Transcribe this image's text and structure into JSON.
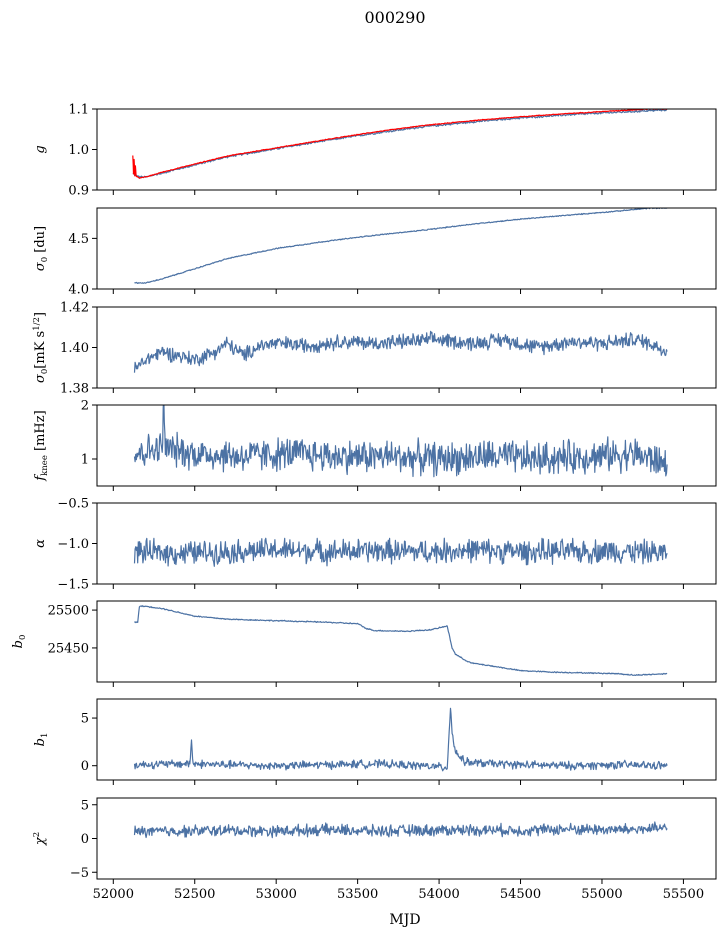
{
  "figure": {
    "title": "000290",
    "xlabel": "MJD"
  },
  "colors": {
    "series": "#4c72a4",
    "fit": "#ff0000"
  },
  "chart_data": [
    {
      "type": "line",
      "ylabel": "g",
      "xlim": [
        51900,
        55700
      ],
      "ylim": [
        0.9,
        1.1
      ],
      "yticks": [
        0.9,
        1.0,
        1.1
      ],
      "ytick_labels": [
        "0.9",
        "1.0",
        "1.1"
      ],
      "xticks": [
        52000,
        52500,
        53000,
        53500,
        54000,
        54500,
        55000,
        55500
      ],
      "series": [
        {
          "color": "#4c72a4",
          "x": [
            52120,
            52160,
            52200,
            52300,
            52500,
            52700,
            53000,
            53300,
            53600,
            53900,
            54200,
            54500,
            54800,
            55100,
            55300,
            55400
          ],
          "y": [
            0.94,
            0.932,
            0.932,
            0.942,
            0.962,
            0.982,
            1.002,
            1.022,
            1.04,
            1.056,
            1.068,
            1.078,
            1.086,
            1.092,
            1.096,
            1.098
          ]
        },
        {
          "color": "#ff0000",
          "x": [
            52120,
            52124,
            52128,
            52132,
            52136,
            52140,
            52160,
            52200,
            52300,
            52500,
            52700,
            53000,
            53300,
            53600,
            53900,
            54200,
            54500,
            54800,
            55100,
            55300,
            55400
          ],
          "y": [
            0.985,
            0.94,
            0.975,
            0.935,
            0.96,
            0.934,
            0.93,
            0.932,
            0.944,
            0.964,
            0.984,
            1.004,
            1.024,
            1.043,
            1.059,
            1.071,
            1.081,
            1.089,
            1.096,
            1.1,
            1.1
          ]
        }
      ]
    },
    {
      "type": "line",
      "ylabel": "σ0 [du]",
      "xlim": [
        51900,
        55700
      ],
      "ylim": [
        4.0,
        4.8
      ],
      "yticks": [
        4.0,
        4.5
      ],
      "ytick_labels": [
        "4.0",
        "4.5"
      ],
      "xticks": [
        52000,
        52500,
        53000,
        53500,
        54000,
        54500,
        55000,
        55500
      ],
      "series": [
        {
          "color": "#4c72a4",
          "x": [
            52130,
            52200,
            52300,
            52500,
            52700,
            53000,
            53300,
            53600,
            53900,
            54200,
            54500,
            54800,
            55100,
            55300,
            55400
          ],
          "y": [
            4.06,
            4.06,
            4.1,
            4.2,
            4.3,
            4.4,
            4.47,
            4.53,
            4.58,
            4.64,
            4.69,
            4.73,
            4.77,
            4.8,
            4.8
          ]
        }
      ]
    },
    {
      "type": "line",
      "ylabel": "σ0[mK s^1/2]",
      "xlim": [
        51900,
        55700
      ],
      "ylim": [
        1.38,
        1.42
      ],
      "yticks": [
        1.38,
        1.4,
        1.42
      ],
      "ytick_labels": [
        "1.38",
        "1.40",
        "1.42"
      ],
      "xticks": [
        52000,
        52500,
        53000,
        53500,
        54000,
        54500,
        55000,
        55500
      ],
      "series": [
        {
          "color": "#4c72a4",
          "x": [
            52130,
            52200,
            52300,
            52400,
            52500,
            52600,
            52700,
            52800,
            52900,
            53000,
            53200,
            53400,
            53600,
            53800,
            54000,
            54200,
            54400,
            54600,
            54800,
            55000,
            55200,
            55300,
            55400
          ],
          "y": [
            1.389,
            1.394,
            1.398,
            1.396,
            1.394,
            1.397,
            1.402,
            1.396,
            1.401,
            1.402,
            1.401,
            1.403,
            1.402,
            1.403,
            1.404,
            1.402,
            1.404,
            1.4,
            1.403,
            1.402,
            1.404,
            1.402,
            1.398
          ]
        }
      ]
    },
    {
      "type": "line",
      "ylabel": "fknee [mHz]",
      "xlim": [
        51900,
        55700
      ],
      "ylim": [
        0.5,
        2.0
      ],
      "yticks": [
        1,
        2
      ],
      "ytick_labels": [
        "1",
        "2"
      ],
      "xticks": [
        52000,
        52500,
        53000,
        53500,
        54000,
        54500,
        55000,
        55500
      ],
      "series": [
        {
          "color": "#4c72a4",
          "x": [
            52130,
            52200,
            52300,
            52310,
            52320,
            52500,
            52800,
            53100,
            53400,
            53700,
            54000,
            54300,
            54600,
            54900,
            55200,
            55400
          ],
          "y": [
            1.1,
            1.15,
            1.2,
            2.0,
            1.2,
            1.1,
            1.05,
            1.1,
            1.05,
            1.05,
            1.0,
            1.05,
            1.0,
            1.05,
            1.1,
            0.9
          ]
        }
      ]
    },
    {
      "type": "line",
      "ylabel": "α",
      "xlim": [
        51900,
        55700
      ],
      "ylim": [
        -1.5,
        -0.5
      ],
      "yticks": [
        -1.5,
        -1.0,
        -0.5
      ],
      "ytick_labels": [
        "−1.5",
        "−1.0",
        "−0.5"
      ],
      "xticks": [
        52000,
        52500,
        53000,
        53500,
        54000,
        54500,
        55000,
        55500
      ],
      "series": [
        {
          "color": "#4c72a4",
          "x": [
            52130,
            52400,
            52700,
            53000,
            53300,
            53600,
            53900,
            54200,
            54500,
            54800,
            55100,
            55400
          ],
          "y": [
            -1.1,
            -1.12,
            -1.1,
            -1.08,
            -1.1,
            -1.09,
            -1.1,
            -1.08,
            -1.1,
            -1.1,
            -1.09,
            -1.12
          ]
        }
      ]
    },
    {
      "type": "line",
      "ylabel": "b0",
      "xlim": [
        51900,
        55700
      ],
      "ylim": [
        25405,
        25512
      ],
      "yticks": [
        25450,
        25500
      ],
      "ytick_labels": [
        "25450",
        "25500"
      ],
      "xticks": [
        52000,
        52500,
        53000,
        53500,
        54000,
        54500,
        55000,
        55500
      ],
      "series": [
        {
          "color": "#4c72a4",
          "x": [
            52130,
            52150,
            52160,
            52200,
            52300,
            52500,
            52700,
            53000,
            53300,
            53500,
            53550,
            53600,
            53800,
            53950,
            54050,
            54080,
            54100,
            54150,
            54200,
            54300,
            54500,
            54700,
            54900,
            55100,
            55200,
            55300,
            55400
          ],
          "y": [
            25484,
            25484,
            25505,
            25505,
            25502,
            25492,
            25488,
            25486,
            25484,
            25482,
            25476,
            25473,
            25472,
            25474,
            25479,
            25450,
            25442,
            25435,
            25430,
            25427,
            25420,
            25418,
            25417,
            25416,
            25414,
            25415,
            25416
          ]
        }
      ]
    },
    {
      "type": "line",
      "ylabel": "b1",
      "xlim": [
        51900,
        55700
      ],
      "ylim": [
        -1.5,
        7
      ],
      "yticks": [
        0,
        5
      ],
      "ytick_labels": [
        "0",
        "5"
      ],
      "xticks": [
        52000,
        52500,
        53000,
        53500,
        54000,
        54500,
        55000,
        55500
      ],
      "series": [
        {
          "color": "#4c72a4",
          "x": [
            52130,
            52400,
            52470,
            52480,
            52490,
            52700,
            53000,
            53300,
            53600,
            53900,
            54050,
            54070,
            54080,
            54100,
            54150,
            54200,
            54500,
            54800,
            55100,
            55400
          ],
          "y": [
            0.1,
            0.2,
            0.2,
            2.6,
            0.2,
            0.1,
            0.0,
            0.1,
            0.2,
            0.0,
            -0.2,
            6.2,
            3.5,
            1.5,
            0.5,
            0.3,
            0.1,
            0.0,
            0.1,
            0.0
          ]
        }
      ]
    },
    {
      "type": "line",
      "ylabel": "χ²",
      "xlim": [
        51900,
        55700
      ],
      "ylim": [
        -6,
        6
      ],
      "yticks": [
        -5,
        0,
        5
      ],
      "ytick_labels": [
        "−5",
        "0",
        "5"
      ],
      "xticks": [
        52000,
        52500,
        53000,
        53500,
        54000,
        54500,
        55000,
        55500
      ],
      "xtick_labels": [
        "52000",
        "52500",
        "53000",
        "53500",
        "54000",
        "54500",
        "55000",
        "55500"
      ],
      "series": [
        {
          "color": "#4c72a4",
          "x": [
            52130,
            52400,
            52700,
            53000,
            53300,
            53600,
            53900,
            54200,
            54500,
            54800,
            55100,
            55400
          ],
          "y": [
            1.0,
            1.1,
            1.2,
            1.1,
            1.3,
            1.1,
            1.2,
            1.3,
            1.2,
            1.4,
            1.3,
            1.5
          ]
        }
      ]
    }
  ]
}
